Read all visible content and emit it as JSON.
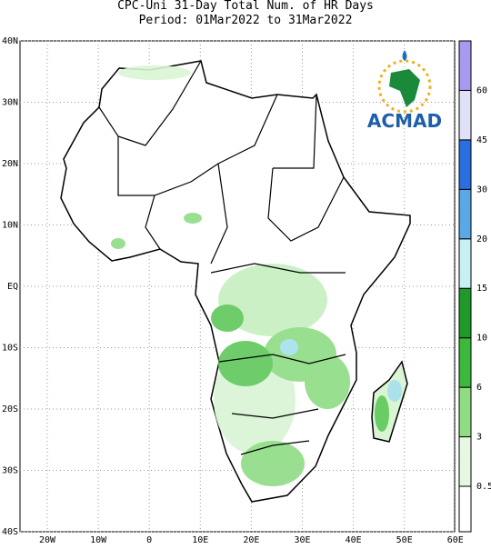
{
  "header": {
    "line1": "CPC-Uni 31-Day Total Num. of HR Days",
    "line2": "Period: 01Mar2022 to 31Mar2022"
  },
  "lat_labels": [
    "40N",
    "30N",
    "20N",
    "10N",
    "EQ",
    "10S",
    "20S",
    "30S",
    "40S"
  ],
  "lon_labels": [
    "20W",
    "10W",
    "0",
    "10E",
    "20E",
    "30E",
    "40E",
    "50E",
    "60E"
  ],
  "colorbar_labels": [
    "0.5",
    "3",
    "6",
    "10",
    "15",
    "20",
    "30",
    "45",
    "60"
  ],
  "logo": "ACMAD"
}
